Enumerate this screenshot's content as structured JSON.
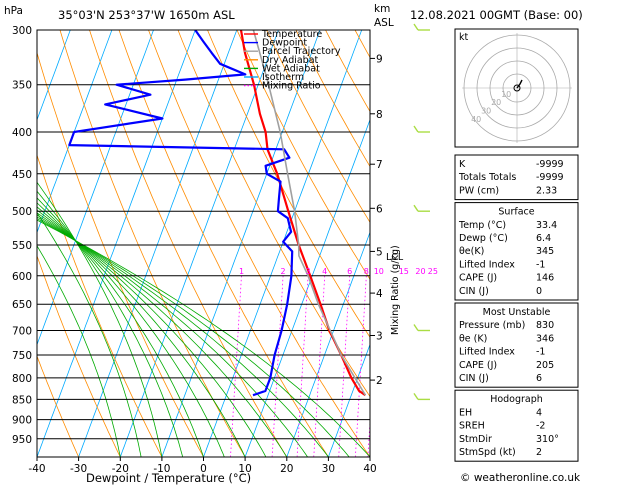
{
  "header": {
    "location": "35°03'N  253°37'W  1650m  ASL",
    "datetime": "12.08.2021  00GMT  (Base: 00)",
    "pressure_unit": "hPa",
    "height_unit_km": "km",
    "height_unit_asl": "ASL"
  },
  "legend": [
    {
      "label": "Temperature",
      "color": "#ff0000",
      "style": "solid"
    },
    {
      "label": "Dewpoint",
      "color": "#0000ff",
      "style": "solid"
    },
    {
      "label": "Parcel Trajectory",
      "color": "#a0a0a0",
      "style": "solid"
    },
    {
      "label": "Dry Adiabat",
      "color": "#ff8c00",
      "style": "solid"
    },
    {
      "label": "Wet Adiabat",
      "color": "#00aa00",
      "style": "solid"
    },
    {
      "label": "Isotherm",
      "color": "#00aaff",
      "style": "solid"
    },
    {
      "label": "Mixing Ratio",
      "color": "#ff00ff",
      "style": "dotted"
    }
  ],
  "chart_data": {
    "type": "line",
    "subtype": "skew-T log-P diagram",
    "xlabel": "Dewpoint / Temperature (°C)",
    "ylabel_left": "hPa",
    "ylabel_right": "Mixing Ratio (g/kg)",
    "x_ticks": [
      -40,
      -30,
      -20,
      -10,
      0,
      10,
      20,
      30,
      40
    ],
    "p_ticks": [
      300,
      350,
      400,
      450,
      500,
      550,
      600,
      650,
      700,
      750,
      800,
      850,
      900,
      950
    ],
    "p_range": [
      300,
      1000
    ],
    "km_ticks": [
      {
        "label": "9",
        "p": 325
      },
      {
        "label": "8",
        "p": 380
      },
      {
        "label": "7",
        "p": 438
      },
      {
        "label": "6",
        "p": 496
      },
      {
        "label": "5",
        "p": 560
      },
      {
        "label": "4",
        "p": 630
      },
      {
        "label": "3",
        "p": 710
      },
      {
        "label": "2",
        "p": 805
      }
    ],
    "lcl": {
      "label": "LCL",
      "p": 567
    },
    "mixing_ratio_labels": [
      {
        "label": "1",
        "t": -7
      },
      {
        "label": "2",
        "t": 3
      },
      {
        "label": "3",
        "t": 9
      },
      {
        "label": "4",
        "t": 13
      },
      {
        "label": "6",
        "t": 19
      },
      {
        "label": "8",
        "t": 23
      },
      {
        "label": "10",
        "t": 26
      },
      {
        "label": "15",
        "t": 32
      },
      {
        "label": "20",
        "t": 36
      },
      {
        "label": "25",
        "t": 39
      }
    ],
    "series": [
      {
        "name": "Temperature",
        "color": "#ff0000",
        "points": [
          [
            840,
            33.4
          ],
          [
            830,
            31.5
          ],
          [
            800,
            28.5
          ],
          [
            750,
            24
          ],
          [
            700,
            19
          ],
          [
            650,
            14.5
          ],
          [
            600,
            9.5
          ],
          [
            550,
            4
          ],
          [
            500,
            -1.5
          ],
          [
            450,
            -7.5
          ],
          [
            420,
            -12
          ],
          [
            400,
            -14
          ],
          [
            380,
            -17
          ],
          [
            350,
            -21
          ],
          [
            320,
            -26
          ],
          [
            300,
            -29
          ]
        ]
      },
      {
        "name": "Dewpoint",
        "color": "#0000ff",
        "points": [
          [
            840,
            6.4
          ],
          [
            830,
            9
          ],
          [
            800,
            9
          ],
          [
            750,
            8
          ],
          [
            700,
            7.5
          ],
          [
            650,
            6.5
          ],
          [
            600,
            5
          ],
          [
            560,
            3
          ],
          [
            545,
            0
          ],
          [
            530,
            1
          ],
          [
            520,
            0
          ],
          [
            510,
            -1
          ],
          [
            500,
            -4
          ],
          [
            480,
            -5
          ],
          [
            460,
            -6
          ],
          [
            450,
            -10
          ],
          [
            440,
            -11
          ],
          [
            430,
            -6
          ],
          [
            420,
            -8
          ],
          [
            415,
            -60
          ],
          [
            400,
            -60
          ],
          [
            385,
            -40
          ],
          [
            370,
            -55
          ],
          [
            360,
            -45
          ],
          [
            350,
            -54
          ],
          [
            345,
            -38
          ],
          [
            340,
            -24
          ],
          [
            330,
            -31
          ],
          [
            320,
            -34
          ],
          [
            310,
            -37
          ],
          [
            300,
            -40
          ]
        ]
      },
      {
        "name": "Parcel Trajectory",
        "color": "#a0a0a0",
        "points": [
          [
            840,
            33.4
          ],
          [
            750,
            24
          ],
          [
            650,
            14
          ],
          [
            600,
            9
          ],
          [
            567,
            5
          ],
          [
            550,
            4
          ],
          [
            500,
            0
          ],
          [
            450,
            -5
          ],
          [
            400,
            -10.5
          ],
          [
            350,
            -17.5
          ],
          [
            300,
            -26
          ]
        ]
      }
    ]
  },
  "wind_barbs": {
    "color": "#aadd44",
    "levels": [
      300,
      400,
      500,
      700,
      850
    ]
  },
  "hodograph": {
    "unit_label": "kt",
    "ring_labels": [
      "10",
      "20",
      "30",
      "40"
    ],
    "storm_marker": true
  },
  "indices_box": {
    "rows": [
      {
        "label": "K",
        "value": "-9999"
      },
      {
        "label": "Totals Totals",
        "value": "-9999"
      },
      {
        "label": "PW (cm)",
        "value": "2.33"
      }
    ]
  },
  "surface_box": {
    "title": "Surface",
    "rows": [
      {
        "label": "Temp (°C)",
        "value": "33.4"
      },
      {
        "label": "Dewp (°C)",
        "value": "6.4"
      },
      {
        "label": "θe(K)",
        "value": "345"
      },
      {
        "label": "Lifted Index",
        "value": "-1"
      },
      {
        "label": "CAPE (J)",
        "value": "146"
      },
      {
        "label": "CIN (J)",
        "value": "0"
      }
    ]
  },
  "unstable_box": {
    "title": "Most Unstable",
    "rows": [
      {
        "label": "Pressure (mb)",
        "value": "830"
      },
      {
        "label": "θe (K)",
        "value": "346"
      },
      {
        "label": "Lifted Index",
        "value": "-1"
      },
      {
        "label": "CAPE (J)",
        "value": "205"
      },
      {
        "label": "CIN (J)",
        "value": "6"
      }
    ]
  },
  "hodo_box": {
    "title": "Hodograph",
    "rows": [
      {
        "label": "EH",
        "value": "4"
      },
      {
        "label": "SREH",
        "value": "-2"
      },
      {
        "label": "StmDir",
        "value": "310°"
      },
      {
        "label": "StmSpd (kt)",
        "value": "2"
      }
    ]
  },
  "footer": {
    "copyright": "© weatheronline.co.uk"
  }
}
